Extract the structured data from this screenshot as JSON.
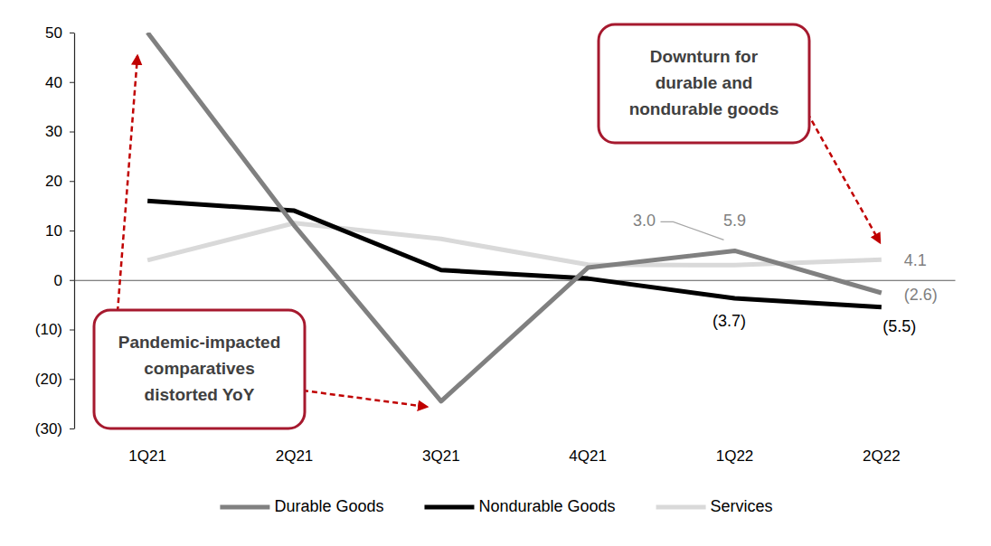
{
  "chart_data": {
    "type": "line",
    "categories": [
      "1Q21",
      "2Q21",
      "3Q21",
      "4Q21",
      "1Q22",
      "2Q22"
    ],
    "series": [
      {
        "name": "Durable Goods",
        "color": "#808080",
        "values": [
          50,
          11,
          -24.5,
          2.5,
          5.9,
          -2.6
        ],
        "value_labels": [
          null,
          null,
          null,
          null,
          "5.9",
          "(2.6)"
        ]
      },
      {
        "name": "Nondurable Goods",
        "color": "#000000",
        "values": [
          16,
          14,
          2,
          0.3,
          -3.7,
          -5.5
        ],
        "value_labels": [
          null,
          null,
          null,
          null,
          "(3.7)",
          "(5.5)"
        ]
      },
      {
        "name": "Services",
        "color": "#d9d9d9",
        "values": [
          4,
          11.5,
          8.3,
          3.1,
          3.0,
          4.1
        ],
        "value_labels": [
          null,
          null,
          null,
          null,
          "3.0",
          "4.1"
        ]
      }
    ],
    "ylim": [
      -30,
      50
    ],
    "yticks": [
      {
        "value": -30,
        "label": "(30)"
      },
      {
        "value": -20,
        "label": "(20)"
      },
      {
        "value": -10,
        "label": "(10)"
      },
      0,
      10,
      20,
      30,
      40,
      50
    ],
    "grid": false,
    "legend": "bottom",
    "data_labels": true,
    "annotations": [
      {
        "text": [
          "Downturn for",
          "durable and",
          "nondurable goods"
        ]
      },
      {
        "text": [
          "Pandemic-impacted",
          "comparatives",
          "distorted YoY"
        ]
      }
    ]
  }
}
